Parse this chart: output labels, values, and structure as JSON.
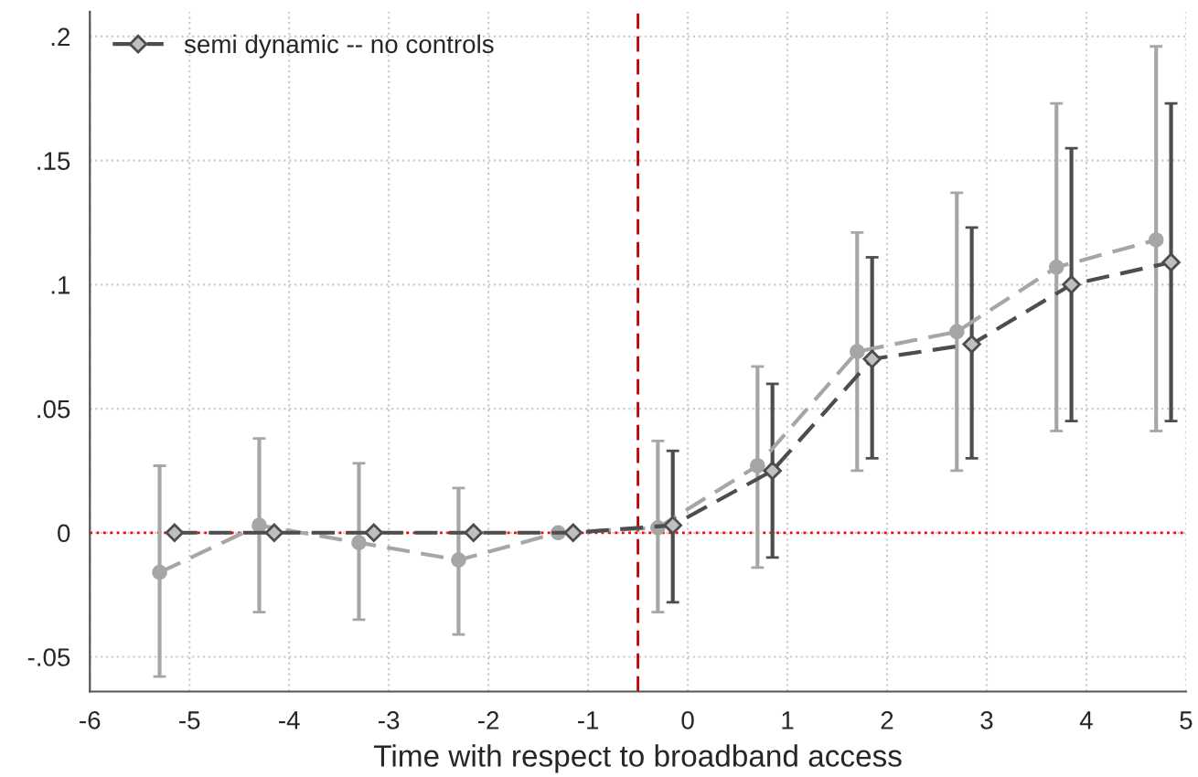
{
  "chart_data": {
    "type": "line",
    "xlabel": "Time with respect to broadband access",
    "xlim": [
      -6,
      5
    ],
    "xticks": [
      -6,
      -5,
      -4,
      -3,
      -2,
      -1,
      0,
      1,
      2,
      3,
      4,
      5
    ],
    "ylim": [
      -0.064,
      0.21
    ],
    "yticks": [
      {
        "value": -0.05,
        "label": "-.05"
      },
      0,
      {
        "value": 0.05,
        "label": ".05"
      },
      {
        "value": 0.1,
        "label": ".1"
      },
      {
        "value": 0.15,
        "label": ".15"
      },
      {
        "value": 0.2,
        "label": ".2"
      }
    ],
    "grid": true,
    "legend": "top left",
    "line_style": "dashed",
    "series": [
      {
        "color": "#a6a6a6",
        "marker": "circle",
        "x": [
          -5.3,
          -4.3,
          -3.3,
          -2.3,
          -1.3,
          -0.3,
          0.7,
          1.7,
          2.7,
          3.7,
          4.7
        ],
        "values": [
          -0.016,
          0.003,
          -0.004,
          -0.011,
          0,
          0.002,
          0.027,
          0.073,
          0.081,
          0.107,
          0.118
        ],
        "errors": [
          [
            -0.058,
            0.027
          ],
          [
            -0.032,
            0.038
          ],
          [
            -0.035,
            0.028
          ],
          [
            -0.041,
            0.018
          ],
          null,
          [
            -0.032,
            0.037
          ],
          [
            -0.014,
            0.067
          ],
          [
            0.025,
            0.121
          ],
          [
            0.025,
            0.137
          ],
          [
            0.041,
            0.173
          ],
          [
            0.041,
            0.196
          ]
        ]
      },
      {
        "name": "semi dynamic -- no controls",
        "color": "#4d4d4d",
        "marker": "diamond",
        "x": [
          -5.15,
          -4.15,
          -3.15,
          -2.15,
          -1.15,
          -0.15,
          0.85,
          1.85,
          2.85,
          3.85,
          4.85
        ],
        "values": [
          0,
          0,
          0,
          0,
          0,
          0.003,
          0.025,
          0.07,
          0.076,
          0.1,
          0.109
        ],
        "errors": [
          null,
          null,
          null,
          null,
          null,
          [
            -0.028,
            0.033
          ],
          [
            -0.01,
            0.06
          ],
          [
            0.03,
            0.111
          ],
          [
            0.03,
            0.123
          ],
          [
            0.045,
            0.155
          ],
          [
            0.045,
            0.173
          ]
        ]
      }
    ],
    "ref_lines": [
      {
        "axis": "y",
        "value": 0,
        "color": "#ff0000",
        "line_style": "dotted"
      },
      {
        "axis": "x",
        "value": -0.5,
        "color": "#c00000",
        "line_style": "dashed"
      }
    ]
  }
}
